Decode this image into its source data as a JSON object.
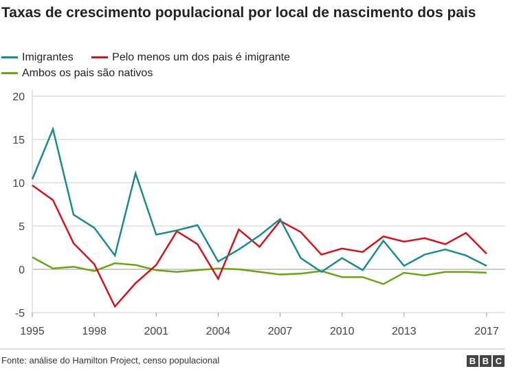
{
  "chart_data": {
    "type": "line",
    "title": "Taxas de crescimento populacional por local de nascimento dos pais",
    "x": [
      1995,
      1996,
      1997,
      1998,
      1999,
      2000,
      2001,
      2002,
      2003,
      2004,
      2005,
      2006,
      2007,
      2008,
      2009,
      2010,
      2011,
      2012,
      2013,
      2014,
      2015,
      2016,
      2017
    ],
    "xticks": [
      "1995",
      "1998",
      "2001",
      "2004",
      "2007",
      "2010",
      "2013",
      "2017"
    ],
    "yticks": [
      "20",
      "15",
      "10",
      "5",
      "0",
      "-5"
    ],
    "ylim": [
      -5,
      20
    ],
    "grid": true,
    "legend_position": "top-left",
    "series": [
      {
        "name": "Imigrantes",
        "color": "#1a8a8a",
        "values": [
          10.4,
          16.2,
          6.3,
          4.8,
          1.6,
          11.1,
          4.0,
          4.5,
          5.1,
          0.9,
          2.3,
          3.9,
          5.8,
          1.3,
          -0.3,
          1.3,
          -0.1,
          3.3,
          0.4,
          1.7,
          2.3,
          1.6,
          0.4
        ]
      },
      {
        "name": "Pelo menos um dos pais é imigrante",
        "color": "#d1121a",
        "values": [
          9.7,
          8.0,
          3.0,
          0.6,
          -4.3,
          -1.6,
          0.5,
          4.4,
          2.9,
          -1.1,
          4.6,
          2.6,
          5.6,
          4.3,
          1.7,
          2.4,
          2.0,
          3.8,
          3.2,
          3.6,
          2.9,
          4.2,
          1.8
        ]
      },
      {
        "name": "Ambos os pais são nativos",
        "color": "#6aa511",
        "values": [
          1.4,
          0.1,
          0.3,
          -0.2,
          0.7,
          0.5,
          -0.1,
          -0.3,
          -0.1,
          0.1,
          0.0,
          -0.3,
          -0.6,
          -0.5,
          -0.2,
          -0.9,
          -0.9,
          -1.7,
          -0.4,
          -0.7,
          -0.3,
          -0.3,
          -0.4
        ]
      }
    ]
  },
  "source": "Fonte: análise do Hamilton Project, censo populacional",
  "logo": "BBC"
}
